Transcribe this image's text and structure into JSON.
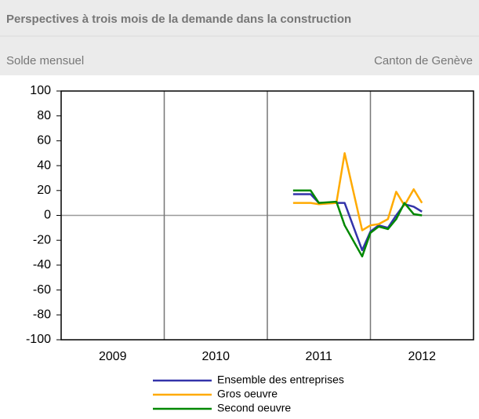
{
  "chart_data": {
    "type": "line",
    "title": "Perspectives à trois mois de la demande dans la construction",
    "subtitle_left": "Solde mensuel",
    "subtitle_right": "Canton de Genève",
    "x": [
      2011.25,
      2011.42,
      2011.5,
      2011.67,
      2011.75,
      2011.92,
      2012.0,
      2012.08,
      2012.17,
      2012.25,
      2012.33,
      2012.42,
      2012.5
    ],
    "series": [
      {
        "name": "Ensemble des entreprises",
        "color": "#3333aa",
        "values": [
          17,
          17,
          10,
          10,
          10,
          -28,
          -13,
          -8,
          -10,
          0,
          9,
          7,
          3
        ]
      },
      {
        "name": "Gros oeuvre",
        "color": "#ffaa00",
        "values": [
          10,
          10,
          9,
          10,
          50,
          -12,
          -8,
          -7,
          -3,
          19,
          8,
          21,
          10
        ]
      },
      {
        "name": "Second oeuvre",
        "color": "#008800",
        "values": [
          20,
          20,
          10,
          11,
          -8,
          -33,
          -14,
          -9,
          -11,
          -3,
          10,
          1,
          0
        ]
      }
    ],
    "xlim": [
      2009,
      2013
    ],
    "xticks": [
      2009,
      2010,
      2011,
      2012
    ],
    "ylim": [
      -100,
      100
    ],
    "yticks": [
      -100,
      -80,
      -60,
      -40,
      -20,
      0,
      20,
      40,
      60,
      80,
      100
    ],
    "grid": true,
    "legend": "bottom"
  }
}
